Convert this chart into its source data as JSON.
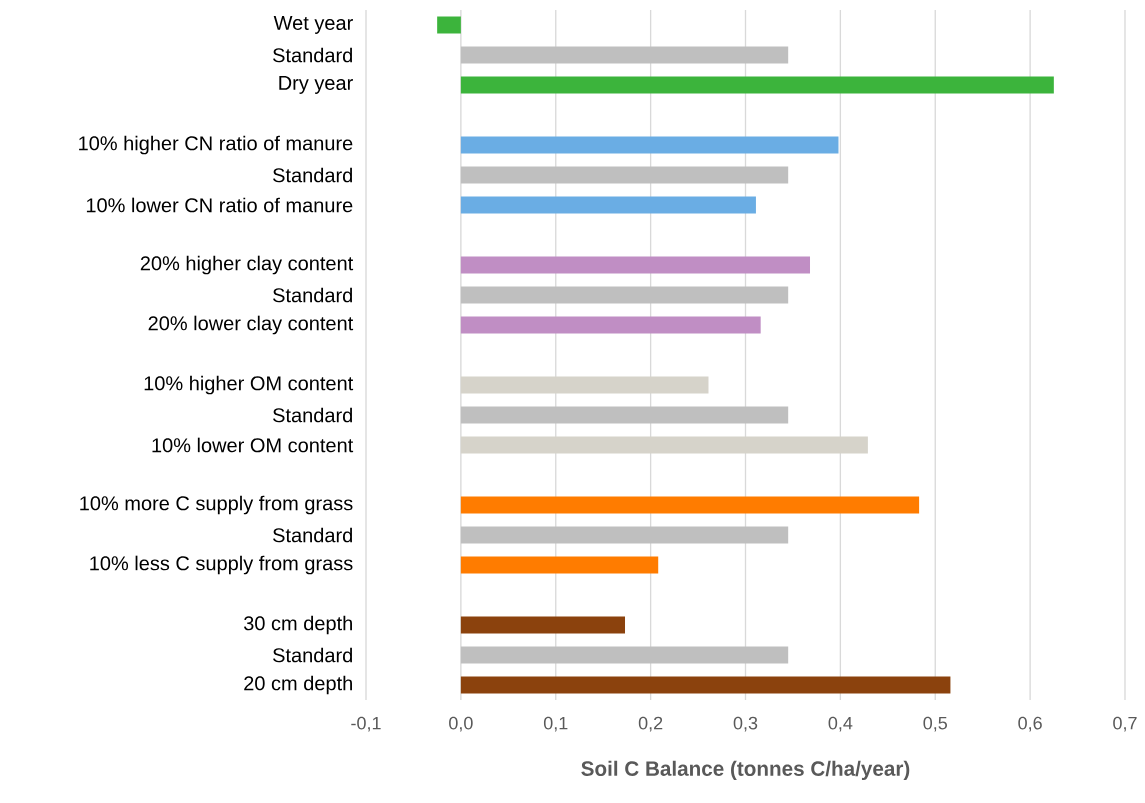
{
  "chart_data": {
    "type": "bar",
    "orientation": "horizontal",
    "xlabel": "Soil C Balance (tonnes C/ha/year)",
    "categories": [
      "Wet year",
      "Standard",
      "Dry year",
      null,
      "10% higher CN ratio of manure",
      "Standard",
      "10% lower CN ratio of manure",
      null,
      "20% higher clay content",
      "Standard",
      "20% lower clay content",
      null,
      "10% higher OM content",
      "Standard",
      "10% lower OM content",
      null,
      "10% more C supply from grass",
      "Standard",
      "10% less C supply from grass",
      null,
      "30 cm depth",
      "Standard",
      "20 cm depth"
    ],
    "values": [
      -0.025,
      0.345,
      0.625,
      null,
      0.398,
      0.345,
      0.311,
      null,
      0.368,
      0.345,
      0.316,
      null,
      0.261,
      0.345,
      0.429,
      null,
      0.483,
      0.345,
      0.208,
      null,
      0.173,
      0.345,
      0.516
    ],
    "colors": [
      "#3cb43c",
      "#bfbfbf",
      "#3cb43c",
      null,
      "#6aade4",
      "#bfbfbf",
      "#6aade4",
      null,
      "#c08ec4",
      "#bfbfbf",
      "#c08ec4",
      null,
      "#d6d3ca",
      "#bfbfbf",
      "#d6d3ca",
      null,
      "#ff7c00",
      "#bfbfbf",
      "#ff7c00",
      null,
      "#8b420d",
      "#bfbfbf",
      "#8b420d"
    ],
    "xlim": [
      -0.1,
      0.7
    ],
    "xticks": [
      {
        "value": -0.1,
        "label": "-0,1"
      },
      {
        "value": 0.0,
        "label": "0,0"
      },
      {
        "value": 0.1,
        "label": "0,1"
      },
      {
        "value": 0.2,
        "label": "0,2"
      },
      {
        "value": 0.3,
        "label": "0,3"
      },
      {
        "value": 0.4,
        "label": "0,4"
      },
      {
        "value": 0.5,
        "label": "0,5"
      },
      {
        "value": 0.6,
        "label": "0,6"
      },
      {
        "value": 0.7,
        "label": "0,7"
      }
    ],
    "grid": "x"
  }
}
